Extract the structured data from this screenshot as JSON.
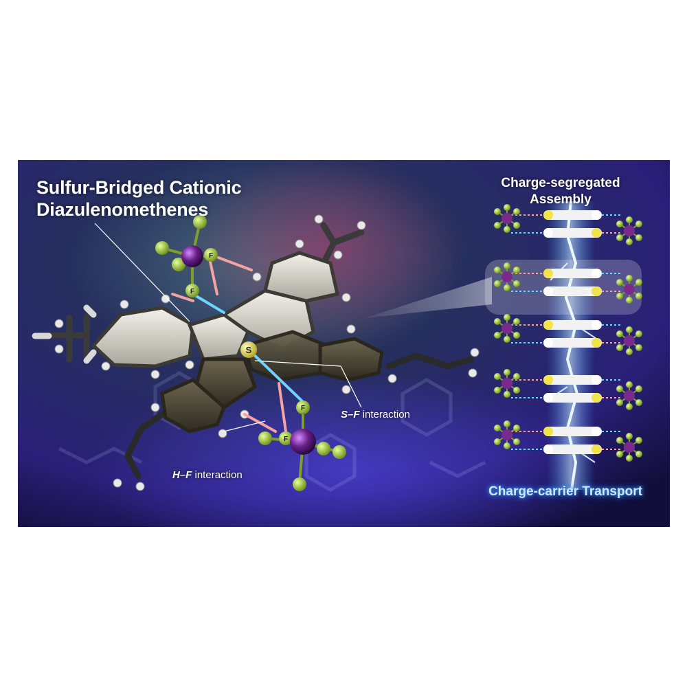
{
  "title": {
    "line1": "Sulfur-Bridged Cationic",
    "line2": "Diazulenomethenes"
  },
  "labels": {
    "sf_prefix": "S–F",
    "sf_suffix": " interaction",
    "hf_prefix": "H–F",
    "hf_suffix": " interaction"
  },
  "assembly": {
    "title_line1": "Charge-segregated",
    "title_line2": "Assembly",
    "footer": "Charge-carrier Transport"
  },
  "atoms": {
    "sulfur": "S",
    "fluorine": "F",
    "hydrogen": "H"
  },
  "colors": {
    "background_dark": "#0d1540",
    "background_purple": "#3a1f7a",
    "fluorine": "#9ecb3c",
    "phosphorus": "#7a2a8c",
    "sulfur": "#f1e44a",
    "sf_bond": "#6fd3ff",
    "hf_bond": "#f3a3a3",
    "lightning": "#cfe8ff"
  }
}
